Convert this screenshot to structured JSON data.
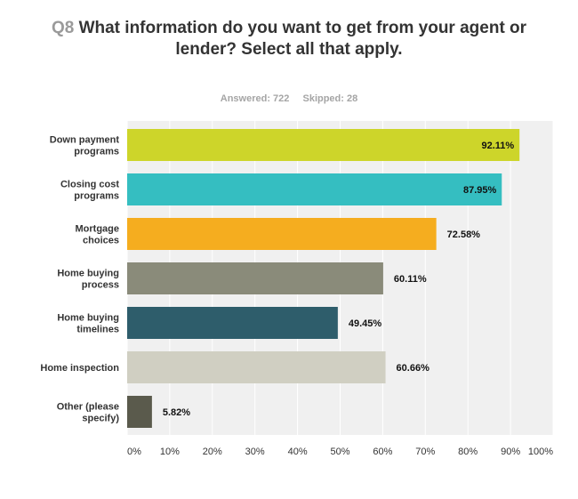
{
  "question": {
    "number": "Q8",
    "text": "What information do you want to get from your agent or lender? Select all that apply."
  },
  "stats": {
    "answered": "Answered: 722",
    "skipped": "Skipped: 28"
  },
  "colors": {
    "plot_background": "#f0f0f0",
    "grid": "#ffffff",
    "bars": [
      "#cdd52a",
      "#35bec1",
      "#f5ad1f",
      "#8a8b7a",
      "#2e5d6b",
      "#d0cfc2",
      "#5a5a4c"
    ]
  },
  "chart_data": {
    "type": "bar",
    "orientation": "horizontal",
    "categories": [
      [
        "Down payment",
        "programs"
      ],
      [
        "Closing cost",
        "programs"
      ],
      [
        "Mortgage",
        "choices"
      ],
      [
        "Home buying",
        "process"
      ],
      [
        "Home buying",
        "timelines"
      ],
      [
        "Home inspection"
      ],
      [
        "Other (please",
        "specify)"
      ]
    ],
    "values": [
      92.11,
      87.95,
      72.58,
      60.11,
      49.45,
      60.66,
      5.82
    ],
    "value_labels": [
      "92.11%",
      "87.95%",
      "72.58%",
      "60.11%",
      "49.45%",
      "60.66%",
      "5.82%"
    ],
    "xlim": [
      0,
      100
    ],
    "xticks": [
      "0%",
      "10%",
      "20%",
      "30%",
      "40%",
      "50%",
      "60%",
      "70%",
      "80%",
      "90%",
      "100%"
    ],
    "grid": true
  }
}
